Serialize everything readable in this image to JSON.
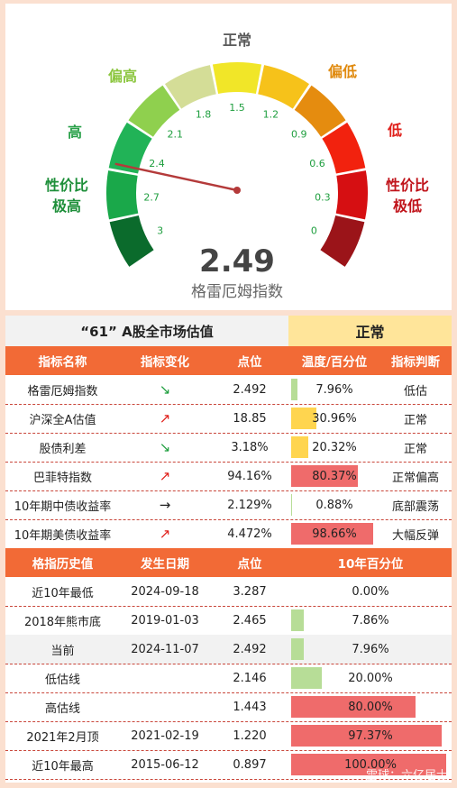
{
  "chart_data": [
    {
      "type": "gauge",
      "value_text": "2.49",
      "value": 2.49,
      "range": [
        3,
        0
      ],
      "value_label": "格雷厄姆指数",
      "ticks": [
        "3",
        "2.7",
        "2.4",
        "2.1",
        "1.8",
        "1.5",
        "1.2",
        "0.9",
        "0.6",
        "0.3",
        "0"
      ],
      "zone_labels": [
        {
          "text": "性价比\n极高",
          "color": "#1e8f3a"
        },
        {
          "text": "高",
          "color": "#2aa14a"
        },
        {
          "text": "偏高",
          "color": "#8cc63f"
        },
        {
          "text": "正常",
          "color": "#595959"
        },
        {
          "text": "偏低",
          "color": "#e08a0e"
        },
        {
          "text": "低",
          "color": "#e0201b"
        },
        {
          "text": "性价比\n极低",
          "color": "#c0141b"
        }
      ],
      "segment_colors": [
        "#0b6b2c",
        "#1aa84a",
        "#21b357",
        "#8fd04e",
        "#d4dd97",
        "#f1e628",
        "#f6c21a",
        "#e58c0f",
        "#f2220e",
        "#d60f12",
        "#9b1419"
      ]
    },
    {
      "type": "table",
      "title": "“61” A股全市场估值",
      "status": "正常",
      "columns": [
        "指标名称",
        "指标变化",
        "点位",
        "温度/百分位",
        "指标判断"
      ],
      "rows": [
        {
          "name": "格雷厄姆指数",
          "change": "↘",
          "point": "2.492",
          "pct_text": "7.96%",
          "pct": 7.96,
          "judge": "低估"
        },
        {
          "name": "沪深全A估值",
          "change": "↗",
          "point": "18.85",
          "pct_text": "30.96%",
          "pct": 30.96,
          "judge": "正常"
        },
        {
          "name": "股债利差",
          "change": "↘",
          "point": "3.18%",
          "pct_text": "20.32%",
          "pct": 20.32,
          "judge": "正常"
        },
        {
          "name": "巴菲特指数",
          "change": "↗",
          "point": "94.16%",
          "pct_text": "80.37%",
          "pct": 80.37,
          "judge": "正常偏高"
        },
        {
          "name": "10年期中债收益率",
          "change": "→",
          "point": "2.129%",
          "pct_text": "0.88%",
          "pct": 0.88,
          "judge": "底部震荡"
        },
        {
          "name": "10年期美债收益率",
          "change": "↗",
          "point": "4.472%",
          "pct_text": "98.66%",
          "pct": 98.66,
          "judge": "大幅反弹"
        }
      ]
    },
    {
      "type": "table",
      "columns": [
        "格指历史值",
        "发生日期",
        "点位",
        "10年百分位"
      ],
      "rows": [
        {
          "name": "近10年最低",
          "date": "2024-09-18",
          "point": "3.287",
          "pct_text": "0.00%",
          "pct": 0
        },
        {
          "name": "2018年熊市底",
          "date": "2019-01-03",
          "point": "2.465",
          "pct_text": "7.86%",
          "pct": 7.86
        },
        {
          "name": "当前",
          "date": "2024-11-07",
          "point": "2.492",
          "pct_text": "7.96%",
          "pct": 7.96
        },
        {
          "name": "低估线",
          "date": "",
          "point": "2.146",
          "pct_text": "20.00%",
          "pct": 20
        },
        {
          "name": "高估线",
          "date": "",
          "point": "1.443",
          "pct_text": "80.00%",
          "pct": 80
        },
        {
          "name": "2021年2月顶",
          "date": "2021-02-19",
          "point": "1.220",
          "pct_text": "97.37%",
          "pct": 97.37
        },
        {
          "name": "近10年最高",
          "date": "2015-06-12",
          "point": "0.897",
          "pct_text": "100.00%",
          "pct": 100
        }
      ]
    }
  ],
  "colors": {
    "header": "#f26a36",
    "green_bar": "#b7dd97",
    "yellow_bar": "#ffd54f",
    "red_bar": "#ef6b6b",
    "arrow_down": "#1e9e3e",
    "arrow_up": "#e0201b"
  },
  "watermark": "雪球：六亿居士"
}
